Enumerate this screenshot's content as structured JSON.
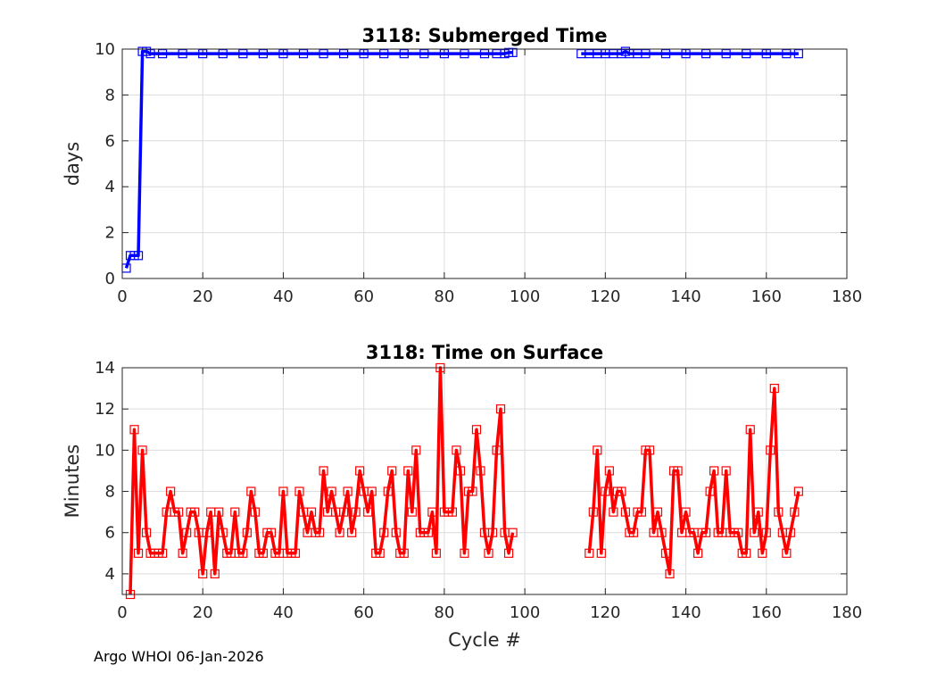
{
  "footer": "Argo WHOI 06-Jan-2026",
  "chart_data": [
    {
      "type": "line",
      "title": "3118: Submerged Time",
      "xlabel": "",
      "ylabel": "days",
      "xlim": [
        0,
        180
      ],
      "ylim": [
        0,
        10
      ],
      "xticks": [
        0,
        20,
        40,
        60,
        80,
        100,
        120,
        140,
        160,
        180
      ],
      "yticks": [
        0,
        2,
        4,
        6,
        8,
        10
      ],
      "grid": true,
      "color": "#0000ff",
      "marker": "square",
      "segments": [
        {
          "x": [
            1,
            2,
            3,
            4,
            5,
            6,
            7,
            10,
            15,
            20,
            25,
            30,
            35,
            40,
            45,
            50,
            55,
            60,
            65,
            70,
            75,
            80,
            85,
            90,
            93,
            95,
            96,
            97
          ],
          "y": [
            0.45,
            1.0,
            1.0,
            1.0,
            9.9,
            9.9,
            9.8,
            9.8,
            9.8,
            9.8,
            9.8,
            9.8,
            9.8,
            9.8,
            9.8,
            9.8,
            9.8,
            9.8,
            9.8,
            9.8,
            9.8,
            9.8,
            9.8,
            9.8,
            9.8,
            9.8,
            9.85,
            9.85
          ]
        },
        {
          "x": [
            114,
            116,
            118,
            120,
            122,
            124,
            125,
            126,
            128,
            130,
            135,
            140,
            145,
            150,
            155,
            160,
            165,
            168
          ],
          "y": [
            9.8,
            9.8,
            9.8,
            9.8,
            9.8,
            9.8,
            9.9,
            9.8,
            9.8,
            9.8,
            9.8,
            9.8,
            9.8,
            9.8,
            9.8,
            9.8,
            9.8,
            9.8
          ]
        }
      ]
    },
    {
      "type": "line",
      "title": "3118: Time on Surface",
      "xlabel": "Cycle #",
      "ylabel": "Minutes",
      "xlim": [
        0,
        180
      ],
      "ylim": [
        3,
        14
      ],
      "xticks": [
        0,
        20,
        40,
        60,
        80,
        100,
        120,
        140,
        160,
        180
      ],
      "yticks": [
        4,
        6,
        8,
        10,
        12,
        14
      ],
      "grid": true,
      "color": "#ff0000",
      "marker": "square",
      "segments": [
        {
          "x": [
            2,
            3,
            4,
            5,
            6,
            7,
            8,
            9,
            10,
            11,
            12,
            13,
            14,
            15,
            16,
            17,
            18,
            19,
            20,
            21,
            22,
            23,
            24,
            25,
            26,
            27,
            28,
            29,
            30,
            31,
            32,
            33,
            34,
            35,
            36,
            37,
            38,
            39,
            40,
            41,
            42,
            43,
            44,
            45,
            46,
            47,
            48,
            49,
            50,
            51,
            52,
            53,
            54,
            55,
            56,
            57,
            58,
            59,
            60,
            61,
            62,
            63,
            64,
            65,
            66,
            67,
            68,
            69,
            70,
            71,
            72,
            73,
            74,
            75,
            76,
            77,
            78,
            79,
            80,
            81,
            82,
            83,
            84,
            85,
            86,
            87,
            88,
            89,
            90,
            91,
            92,
            93,
            94,
            95,
            96,
            97
          ],
          "y": [
            3,
            11,
            5,
            10,
            6,
            5,
            5,
            5,
            5,
            7,
            8,
            7,
            7,
            5,
            6,
            7,
            7,
            6,
            4,
            6,
            7,
            4,
            7,
            6,
            5,
            5,
            7,
            5,
            5,
            6,
            8,
            7,
            5,
            5,
            6,
            6,
            5,
            5,
            8,
            5,
            5,
            5,
            8,
            7,
            6,
            7,
            6,
            6,
            9,
            7,
            8,
            7,
            6,
            7,
            8,
            6,
            7,
            9,
            8,
            7,
            8,
            5,
            5,
            6,
            8,
            9,
            6,
            5,
            5,
            9,
            7,
            10,
            6,
            6,
            6,
            7,
            5,
            14,
            7,
            7,
            7,
            10,
            9,
            5,
            8,
            8,
            11,
            9,
            6,
            5,
            6,
            10,
            12,
            6,
            5,
            6
          ]
        },
        {
          "x": [
            116,
            117,
            118,
            119,
            120,
            121,
            122,
            123,
            124,
            125,
            126,
            127,
            128,
            129,
            130,
            131,
            132,
            133,
            134,
            135,
            136,
            137,
            138,
            139,
            140,
            141,
            142,
            143,
            144,
            145,
            146,
            147,
            148,
            149,
            150,
            151,
            152,
            153,
            154,
            155,
            156,
            157,
            158,
            159,
            160,
            161,
            162,
            163,
            164,
            165,
            166,
            167,
            168
          ],
          "y": [
            5,
            7,
            10,
            5,
            8,
            9,
            7,
            8,
            8,
            7,
            6,
            6,
            7,
            7,
            10,
            10,
            6,
            7,
            6,
            5,
            4,
            9,
            9,
            6,
            7,
            6,
            6,
            5,
            6,
            6,
            8,
            9,
            6,
            6,
            9,
            6,
            6,
            6,
            5,
            5,
            11,
            6,
            7,
            5,
            6,
            10,
            13,
            7,
            6,
            5,
            6,
            7,
            8
          ]
        }
      ]
    }
  ]
}
